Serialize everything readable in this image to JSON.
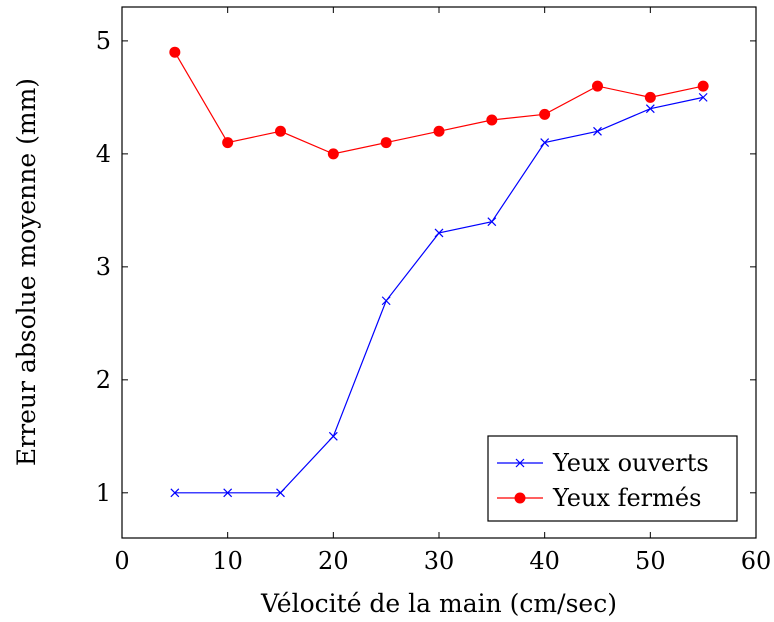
{
  "chart_data": {
    "type": "line",
    "title": "",
    "xlabel": "Vélocité de la main (cm/sec)",
    "ylabel": "Erreur absolue moyenne (mm)",
    "xlim": [
      0,
      60
    ],
    "ylim": [
      0.6,
      5.3
    ],
    "xticks": [
      0,
      10,
      20,
      30,
      40,
      50,
      60
    ],
    "yticks": [
      1,
      2,
      3,
      4,
      5
    ],
    "grid": false,
    "legend_position": "bottom-right",
    "series": [
      {
        "name": "Yeux ouverts",
        "color": "#0000ff",
        "marker": "cross",
        "x": [
          5,
          10,
          15,
          20,
          25,
          30,
          35,
          40,
          45,
          50,
          55
        ],
        "y": [
          1.0,
          1.0,
          1.0,
          1.5,
          2.7,
          3.3,
          3.4,
          4.1,
          4.2,
          4.4,
          4.5
        ]
      },
      {
        "name": "Yeux fermés",
        "color": "#ff0000",
        "marker": "circle",
        "x": [
          5,
          10,
          15,
          20,
          25,
          30,
          35,
          40,
          45,
          50,
          55
        ],
        "y": [
          4.9,
          4.1,
          4.2,
          4.0,
          4.1,
          4.2,
          4.3,
          4.35,
          4.6,
          4.5,
          4.6
        ]
      }
    ]
  }
}
